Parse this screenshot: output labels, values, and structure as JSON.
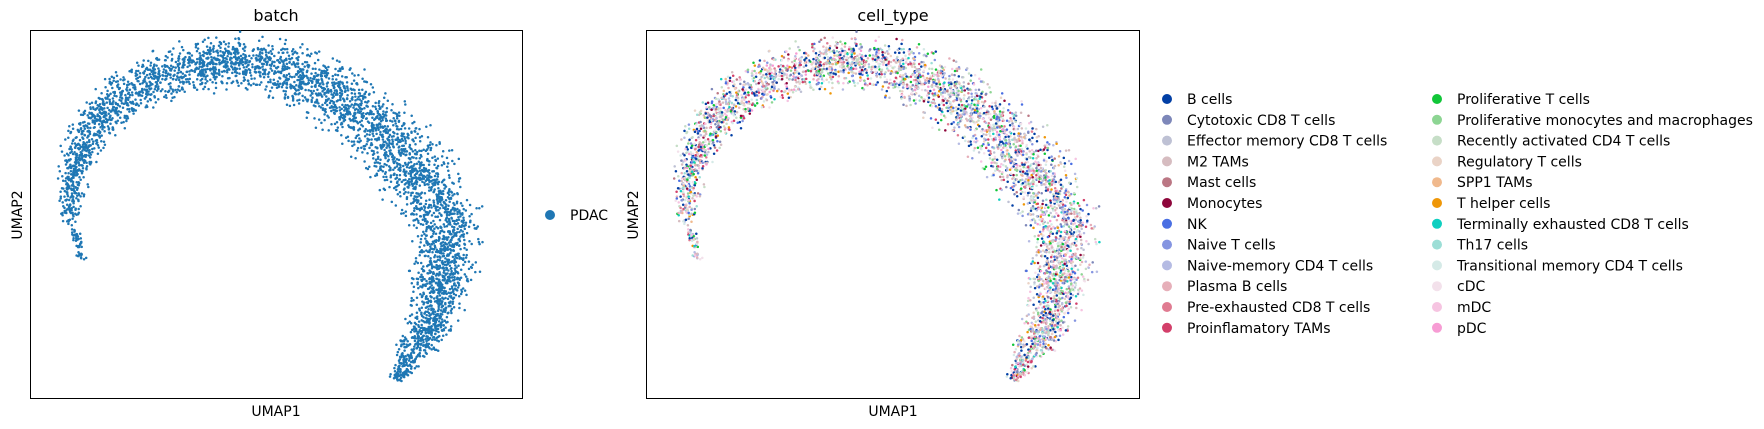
{
  "chart_data": [
    {
      "type": "scatter",
      "title": "batch",
      "xlabel": "UMAP1",
      "ylabel": "UMAP2",
      "grid": false,
      "axis_ticks": false,
      "legend_placement": "right",
      "series": [
        {
          "name": "PDAC",
          "color": "#1f77b4"
        }
      ],
      "embedding_shape": "crescent arc: left tail, broad top, dense right side, tail at lower right",
      "approx_cell_count": 9000
    },
    {
      "type": "scatter",
      "title": "cell_type",
      "xlabel": "UMAP1",
      "ylabel": "UMAP2",
      "grid": false,
      "axis_ticks": false,
      "legend_placement": "right",
      "legend_columns": 2,
      "series": [
        {
          "name": "B cells",
          "color": "#023fa5"
        },
        {
          "name": "Cytotoxic CD8 T cells",
          "color": "#7d87b9"
        },
        {
          "name": "Effector memory CD8 T cells",
          "color": "#bec1d4"
        },
        {
          "name": "M2 TAMs",
          "color": "#d6bcc0"
        },
        {
          "name": "Mast cells",
          "color": "#bb7784"
        },
        {
          "name": "Monocytes",
          "color": "#8e063b"
        },
        {
          "name": "NK",
          "color": "#4a6fe3"
        },
        {
          "name": "Naive T cells",
          "color": "#8595e1"
        },
        {
          "name": "Naive-memory CD4 T cells",
          "color": "#b5bbe3"
        },
        {
          "name": "Plasma B cells",
          "color": "#e6afb9"
        },
        {
          "name": "Pre-exhausted CD8 T cells",
          "color": "#e07b91"
        },
        {
          "name": "Proinflamatory TAMs",
          "color": "#d33f6a"
        },
        {
          "name": "Proliferative T cells",
          "color": "#11c638"
        },
        {
          "name": "Proliferative monocytes and macrophages",
          "color": "#8dd593"
        },
        {
          "name": "Recently activated CD4 T cells",
          "color": "#c6dec7"
        },
        {
          "name": "Regulatory T cells",
          "color": "#ead3c6"
        },
        {
          "name": "SPP1 TAMs",
          "color": "#f0b98d"
        },
        {
          "name": "T helper cells",
          "color": "#ef9708"
        },
        {
          "name": "Terminally exhausted CD8 T cells",
          "color": "#0fcfc0"
        },
        {
          "name": "Th17 cells",
          "color": "#9cded6"
        },
        {
          "name": "Transitional memory CD4 T cells",
          "color": "#d5eae7"
        },
        {
          "name": "cDC",
          "color": "#f3e1eb"
        },
        {
          "name": "mDC",
          "color": "#f6c4e1"
        },
        {
          "name": "pDC",
          "color": "#f79cd4"
        }
      ],
      "embedding_shape": "same crescent embedding as batch panel, points coloured by cell type",
      "approx_cell_count": 9000
    }
  ]
}
